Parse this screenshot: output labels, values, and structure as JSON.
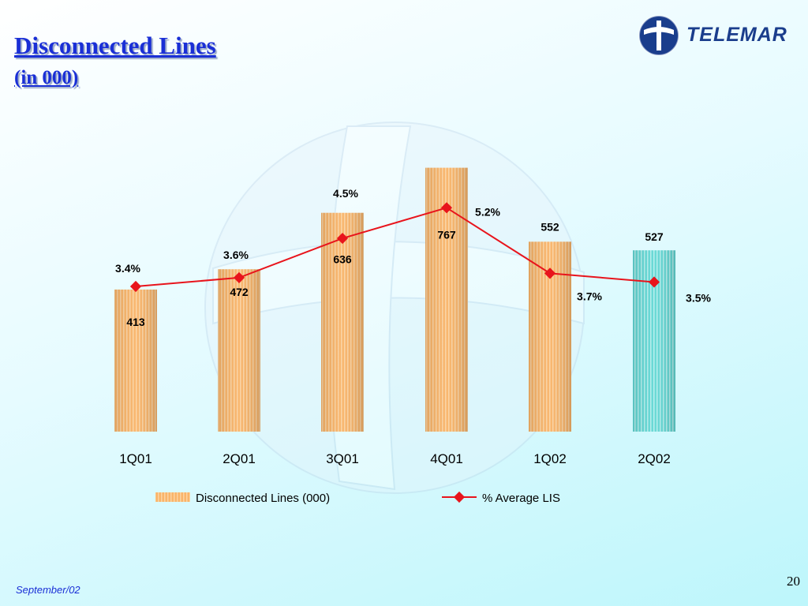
{
  "slide": {
    "title": "Disconnected Lines",
    "subtitle": "(in 000)",
    "logo_text": "TELEMAR",
    "footer_date": "September/02",
    "page_number": "20"
  },
  "colors": {
    "title": "#1a2fd6",
    "bar_orange": "#f7a54a",
    "bar_cyan": "#55d6d3",
    "line": "#e8141c"
  },
  "chart_data": {
    "type": "bar",
    "categories": [
      "1Q01",
      "2Q01",
      "3Q01",
      "4Q01",
      "1Q02",
      "2Q02"
    ],
    "series": [
      {
        "name": "Disconnected Lines (000)",
        "type": "bar",
        "values": [
          413,
          472,
          636,
          767,
          552,
          527
        ],
        "labels": [
          "413",
          "472",
          "636",
          "767",
          "552",
          "527"
        ],
        "highlight_last": true
      },
      {
        "name": "% Average LIS",
        "type": "line",
        "values": [
          3.4,
          3.6,
          4.5,
          5.2,
          3.7,
          3.5
        ],
        "labels": [
          "3.4%",
          "3.6%",
          "4.5%",
          "5.2%",
          "3.7%",
          "3.5%"
        ]
      }
    ],
    "legend": "bottom",
    "grid": false
  }
}
